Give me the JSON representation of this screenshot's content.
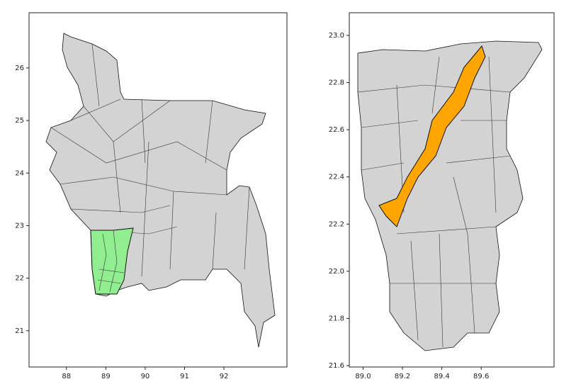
{
  "chart_data": [
    {
      "type": "map",
      "xlim": [
        87.05,
        93.6
      ],
      "ylim": [
        20.31,
        27.05
      ],
      "xticks": [
        88,
        89,
        90,
        91,
        92
      ],
      "yticks": [
        21,
        22,
        23,
        24,
        25,
        26
      ],
      "highlight_color": "#90ee90"
    },
    {
      "type": "map",
      "xlim": [
        88.93,
        89.97
      ],
      "ylim": [
        21.594,
        23.096
      ],
      "xticks": [
        {
          "value": 89.0,
          "label": "89.0"
        },
        {
          "value": 89.2,
          "label": "89.2"
        },
        {
          "value": 89.4,
          "label": "89.4"
        },
        {
          "value": 89.6,
          "label": "89.6"
        }
      ],
      "yticks": [
        {
          "value": 21.6,
          "label": "21.6"
        },
        {
          "value": 21.8,
          "label": "21.8"
        },
        {
          "value": 22.0,
          "label": "22.0"
        },
        {
          "value": 22.2,
          "label": "22.2"
        },
        {
          "value": 22.4,
          "label": "22.4"
        },
        {
          "value": 22.6,
          "label": "22.6"
        },
        {
          "value": 22.8,
          "label": "22.8"
        },
        {
          "value": 23.0,
          "label": "23.0"
        }
      ],
      "highlight_color": "#ffa500"
    }
  ]
}
